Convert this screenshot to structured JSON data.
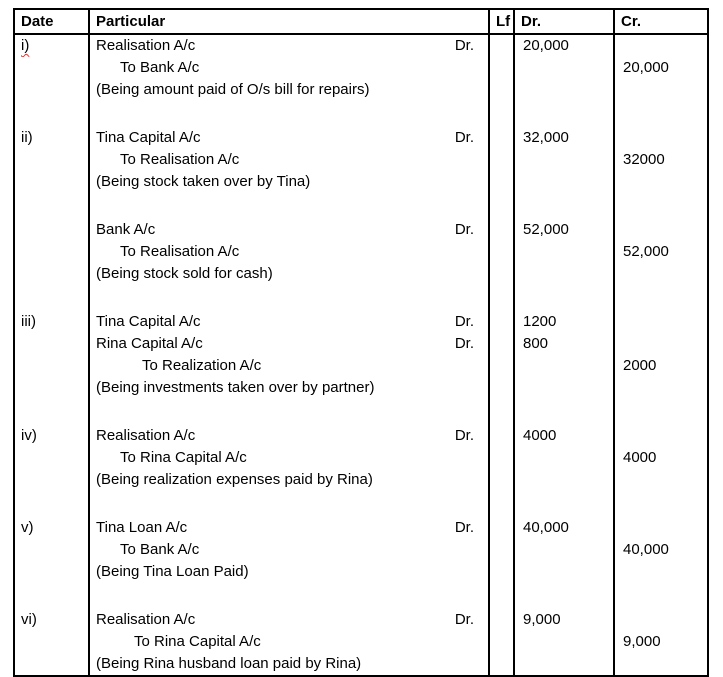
{
  "table": {
    "headers": {
      "date": "Date",
      "particular": "Particular",
      "lf": "Lf",
      "dr": "Dr.",
      "cr": "Cr."
    },
    "entries": [
      {
        "date": "i)",
        "date_spellcheck_squiggle": true,
        "lines": [
          {
            "particular": "Realisation A/c",
            "dr_suffix": "Dr.",
            "indent": 0,
            "dr": "20,000",
            "cr": ""
          },
          {
            "particular": "To Bank A/c",
            "dr_suffix": "",
            "indent": 1,
            "dr": "",
            "cr": "20,000"
          },
          {
            "particular": "(Being amount paid of O/s bill for repairs)",
            "dr_suffix": "",
            "indent": 0,
            "dr": "",
            "cr": ""
          }
        ]
      },
      {
        "date": "ii)",
        "date_spellcheck_squiggle": false,
        "lines": [
          {
            "particular": "Tina Capital A/c",
            "dr_suffix": "Dr.",
            "indent": 0,
            "dr": "32,000",
            "cr": ""
          },
          {
            "particular": "To Realisation A/c",
            "dr_suffix": "",
            "indent": 1,
            "dr": "",
            "cr": "32000"
          },
          {
            "particular": "(Being stock taken over by Tina)",
            "dr_suffix": "",
            "indent": 0,
            "dr": "",
            "cr": ""
          }
        ]
      },
      {
        "date": "",
        "date_spellcheck_squiggle": false,
        "lines": [
          {
            "particular": "Bank A/c",
            "dr_suffix": "Dr.",
            "indent": 0,
            "dr": "52,000",
            "cr": ""
          },
          {
            "particular": "To Realisation A/c",
            "dr_suffix": "",
            "indent": 1,
            "dr": "",
            "cr": "52,000"
          },
          {
            "particular": "(Being stock sold for cash)",
            "dr_suffix": "",
            "indent": 0,
            "dr": "",
            "cr": ""
          }
        ]
      },
      {
        "date": "iii)",
        "date_spellcheck_squiggle": false,
        "lines": [
          {
            "particular": "Tina Capital A/c",
            "dr_suffix": "Dr.",
            "indent": 0,
            "dr": "1200",
            "cr": ""
          },
          {
            "particular": "Rina Capital A/c",
            "dr_suffix": "Dr.",
            "indent": 0,
            "dr": "800",
            "cr": ""
          },
          {
            "particular": "To Realization A/c",
            "dr_suffix": "",
            "indent": 3,
            "dr": "",
            "cr": "2000"
          },
          {
            "particular": "(Being investments taken over by partner)",
            "dr_suffix": "",
            "indent": 0,
            "dr": "",
            "cr": ""
          }
        ]
      },
      {
        "date": "iv)",
        "date_spellcheck_squiggle": false,
        "lines": [
          {
            "particular": "Realisation A/c",
            "dr_suffix": "Dr.",
            "indent": 0,
            "dr": "4000",
            "cr": ""
          },
          {
            "particular": "To Rina Capital A/c",
            "dr_suffix": "",
            "indent": 1,
            "dr": "",
            "cr": "4000"
          },
          {
            "particular": "(Being realization expenses paid by Rina)",
            "dr_suffix": "",
            "indent": 0,
            "dr": "",
            "cr": ""
          }
        ]
      },
      {
        "date": "v)",
        "date_spellcheck_squiggle": false,
        "lines": [
          {
            "particular": "Tina Loan A/c",
            "dr_suffix": "Dr.",
            "indent": 0,
            "dr": "40,000",
            "cr": ""
          },
          {
            "particular": "To Bank A/c",
            "dr_suffix": "",
            "indent": 1,
            "dr": "",
            "cr": "40,000"
          },
          {
            "particular": "(Being Tina Loan Paid)",
            "dr_suffix": "",
            "indent": 0,
            "dr": "",
            "cr": ""
          }
        ]
      },
      {
        "date": "vi)",
        "date_spellcheck_squiggle": false,
        "lines": [
          {
            "particular": "Realisation A/c",
            "dr_suffix": "Dr.",
            "indent": 0,
            "dr": "9,000",
            "cr": ""
          },
          {
            "particular": "To Rina Capital A/c",
            "dr_suffix": "",
            "indent": 2,
            "dr": "",
            "cr": "9,000"
          },
          {
            "particular": "(Being Rina husband loan paid by Rina)",
            "dr_suffix": "",
            "indent": 0,
            "dr": "",
            "cr": ""
          }
        ]
      }
    ]
  }
}
